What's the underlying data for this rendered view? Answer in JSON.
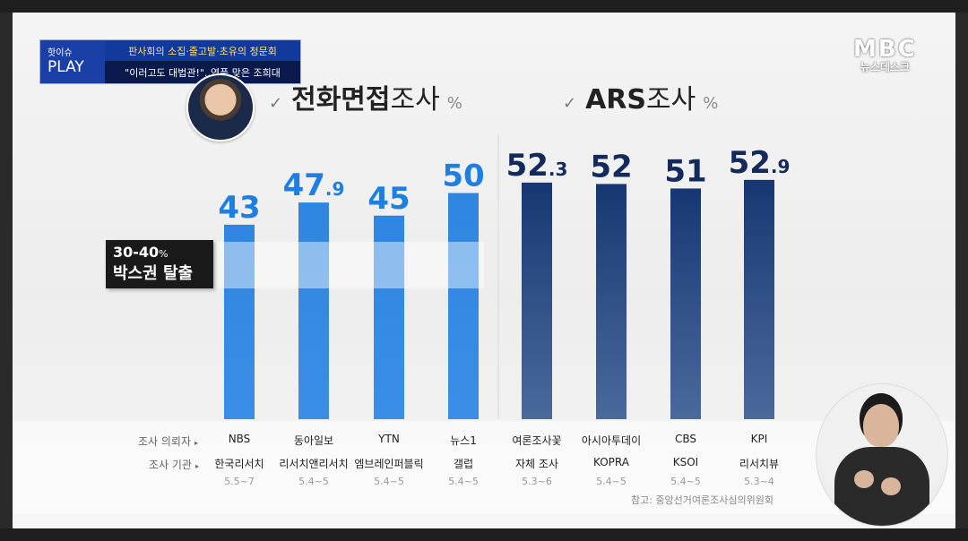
{
  "badge": {
    "small": "핫이슈",
    "big": "PLAY",
    "line1": "판사회의 소집·줄고발·초유의 청문회",
    "line2": "\"이러고도 대법관!\"..역풍 맞은 조희대"
  },
  "logo": {
    "main": "MBC",
    "sub": "뉴스데스크"
  },
  "sections": {
    "phone": {
      "check": "✓",
      "bold": "전화면접",
      "rest": "조사",
      "unit": "%"
    },
    "ars": {
      "check": "✓",
      "bold": "ARS",
      "rest": "조사",
      "unit": "%"
    }
  },
  "box_label": {
    "line1": "30-40",
    "line1_unit": "%",
    "line2": "박스권 탈출"
  },
  "rows": {
    "client_label": "조사 의뢰자",
    "agency_label": "조사 기관",
    "arrow": "▸"
  },
  "chart_data": {
    "type": "bar",
    "categories": [
      "NBS",
      "동아일보",
      "YTN",
      "뉴스1",
      "여론조사꽃",
      "아시아투데이",
      "CBS",
      "KPI"
    ],
    "agencies": [
      "한국리서치",
      "리서치앤리서치",
      "엠브레인퍼블릭",
      "갤럽",
      "자체 조사",
      "KOPRA",
      "KSOI",
      "리서치뷰"
    ],
    "dates": [
      "5.5~7",
      "5.4~5",
      "5.4~5",
      "5.4~5",
      "5.3~6",
      "5.4~5",
      "5.4~5",
      "5.3~4"
    ],
    "values": [
      43,
      47.9,
      45,
      50,
      52.3,
      52,
      51,
      52.9
    ],
    "value_labels": [
      {
        "int": "43",
        "dec": ""
      },
      {
        "int": "47",
        "dec": ".9"
      },
      {
        "int": "45",
        "dec": ""
      },
      {
        "int": "50",
        "dec": ""
      },
      {
        "int": "52",
        "dec": ".3"
      },
      {
        "int": "52",
        "dec": ""
      },
      {
        "int": "51",
        "dec": ""
      },
      {
        "int": "52",
        "dec": ".9"
      }
    ],
    "method": [
      "전화면접",
      "전화면접",
      "전화면접",
      "전화면접",
      "ARS",
      "ARS",
      "ARS",
      "ARS"
    ],
    "colors": {
      "phone": "#2f86e0",
      "phone_label": "#1f7fe0",
      "ars": "#1a3c78",
      "ars_label": "#152a5c"
    },
    "ylim": [
      0,
      60
    ]
  },
  "source": "참고: 중앙선거여론조사심의위원회"
}
